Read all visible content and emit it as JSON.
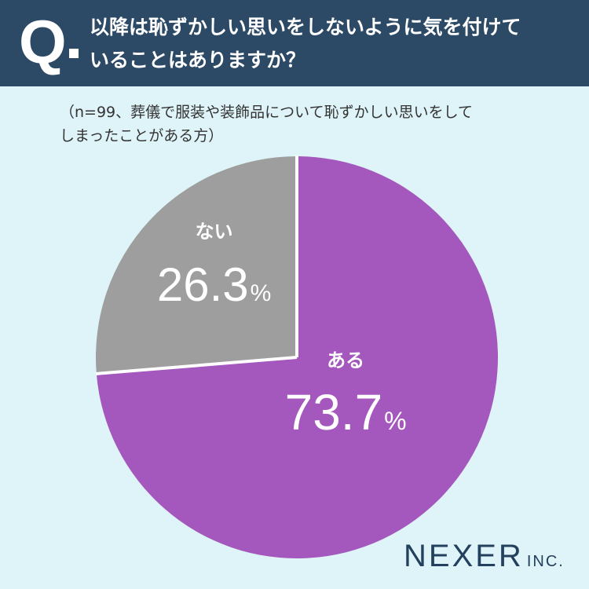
{
  "header": {
    "q_mark": "Q",
    "question_line1": "以降は恥ずかしい思いをしないように気を付けて",
    "question_line2": "いることはありますか？"
  },
  "note": {
    "line1": "（n=99、葬儀で服装や装飾品について恥ずかしい思いをして",
    "line2": "しまったことがある方）"
  },
  "chart_data": {
    "type": "pie",
    "categories": [
      "ある",
      "ない"
    ],
    "values": [
      73.7,
      26.3
    ],
    "unit": "%",
    "colors": [
      "#a457bd",
      "#9e9e9e"
    ],
    "start": "12 o'clock, clockwise"
  },
  "logo": {
    "main": "NEXER",
    "suffix": "INC."
  }
}
